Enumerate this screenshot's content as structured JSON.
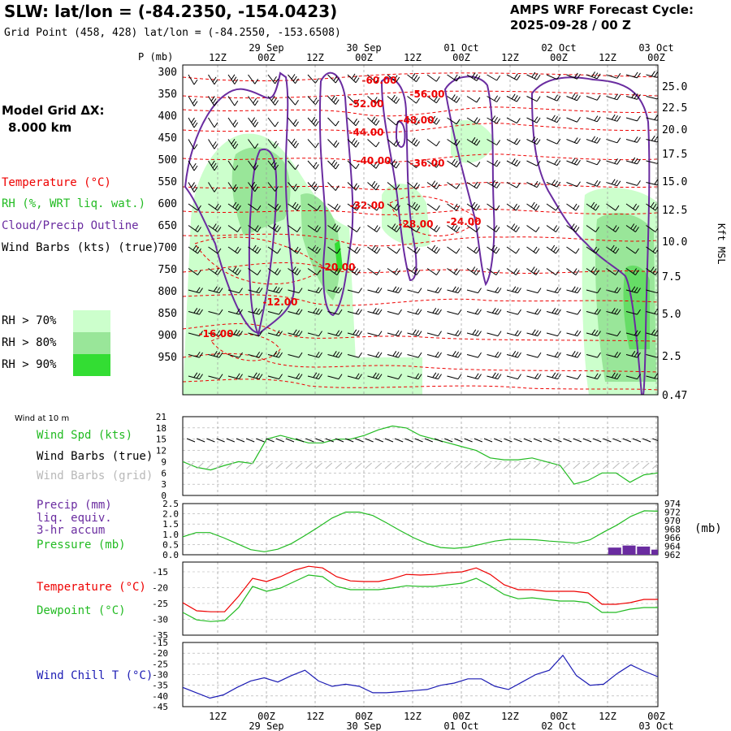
{
  "header": {
    "title": "SLW:  lat/lon = (-84.2350, -154.0423)",
    "gridpoint": "Grid Point (458, 428) lat/lon = (-84.2550, -153.6508)",
    "forecast_title": "AMPS WRF Forecast Cycle:",
    "forecast_cycle": "2025-09-28 / 00  Z"
  },
  "left_legend": {
    "model_grid_label": "Model Grid ΔX:",
    "model_grid_value": "8.000 km",
    "temperature": "Temperature (°C)",
    "rh": "RH (%, WRT liq. wat.)",
    "cloud": "Cloud/Precip Outline",
    "wind_barbs": "Wind Barbs (kts) (true)",
    "rh70": "RH > 70%",
    "rh80": "RH > 80%",
    "rh90": "RH > 90%",
    "rh70_color": "#ccffcc",
    "rh80_color": "#99e699",
    "rh90_color": "#33dd33"
  },
  "axes": {
    "p_label": "P (mb)",
    "kft_label": "Kft MSL",
    "wind10m_label": "Wind at 10 m",
    "mb_label": "(mb)"
  },
  "panel_labels": {
    "wind_spd": "Wind Spd (kts)",
    "wind_barbs_true": "Wind Barbs (true)",
    "wind_barbs_grid": "Wind Barbs (grid)",
    "precip": "Precip (mm)",
    "precip_sub1": "liq. equiv.",
    "precip_sub2": "3-hr accum",
    "pressure": "Pressure (mb)",
    "temperature": "Temperature (°C)",
    "dewpoint": "Dewpoint (°C)",
    "wind_chill": "Wind Chill T (°C)"
  },
  "colors": {
    "red": "#ee0000",
    "green": "#22bb22",
    "purple": "#6a2ca0",
    "blue": "#1c1cb4",
    "gray": "#b8b8b8"
  },
  "chart_data": [
    {
      "type": "line",
      "title": "Vertical cross-section (time-height)",
      "ylabel": "P (mb)",
      "y2label": "Kft MSL",
      "time_ticks": [
        "12Z",
        "00Z",
        "12Z",
        "00Z",
        "12Z",
        "00Z",
        "12Z",
        "00Z",
        "12Z",
        "00Z"
      ],
      "date_ticks": [
        "29 Sep",
        "30 Sep",
        "01 Oct",
        "02 Oct",
        "03 Oct"
      ],
      "pressure_ticks": [
        300,
        350,
        400,
        450,
        500,
        550,
        600,
        650,
        700,
        750,
        800,
        850,
        900,
        950
      ],
      "height_ticks": [
        "25.0",
        "22.5",
        "20.0",
        "17.5",
        "15.0",
        "12.5",
        "10.0",
        "7.5",
        "5.0",
        "2.5",
        "0.47"
      ],
      "temperature_labels": [
        "-60.00",
        "-56.00",
        "-52.00",
        "-48.00",
        "-44.00",
        "-40.00",
        "-36.00",
        "-32.00",
        "-28.00",
        "-24.00",
        "-20.00",
        "-12.00",
        "-16.00"
      ]
    },
    {
      "type": "line",
      "title": "10 m wind speed",
      "ylabel": "Wind Spd (kts)",
      "y_ticks": [
        "21",
        "18",
        "15",
        "12",
        "9",
        "6",
        "3",
        "0"
      ],
      "ylim": [
        0,
        21
      ],
      "series": [
        {
          "name": "Wind Spd",
          "values": [
            9,
            7.5,
            6.8,
            8,
            9,
            8.5,
            15,
            16,
            15,
            14,
            14,
            15,
            15,
            16,
            17.5,
            18.5,
            18,
            16,
            15,
            14,
            13,
            12,
            10,
            9.5,
            9.5,
            10,
            9,
            8,
            3,
            4,
            6,
            6,
            3.5,
            5.5,
            6
          ]
        }
      ]
    },
    {
      "type": "line",
      "title": "Precipitation and surface pressure",
      "ylabel": "Precip (mm)",
      "y2label": "Pressure (mb)",
      "y_ticks": [
        "2.5",
        "2.0",
        "1.5",
        "1.0",
        "0.5",
        "0.0"
      ],
      "y2_ticks": [
        "974",
        "972",
        "970",
        "968",
        "966",
        "964",
        "962"
      ],
      "ylim": [
        0,
        2.5
      ],
      "y2lim": [
        962,
        974
      ],
      "series": [
        {
          "name": "Pressure",
          "values": [
            966.2,
            967.2,
            967.2,
            966,
            964.6,
            963.2,
            962.7,
            963.3,
            964.6,
            966.5,
            968.5,
            970.6,
            972,
            972,
            971.2,
            969.5,
            967.7,
            966,
            964.6,
            963.7,
            963.5,
            963.8,
            964.5,
            965.2,
            965.6,
            965.6,
            965.5,
            965.2,
            965,
            964.7,
            965.5,
            967.3,
            969,
            971,
            972.3,
            972.2
          ]
        },
        {
          "name": "Precip",
          "values": [
            0,
            0,
            0,
            0,
            0,
            0,
            0,
            0,
            0,
            0,
            0,
            0,
            0,
            0,
            0,
            0,
            0,
            0,
            0,
            0,
            0,
            0,
            0,
            0,
            0,
            0,
            0,
            0,
            0,
            0,
            0.35,
            0.45,
            0.4,
            0.25
          ]
        }
      ]
    },
    {
      "type": "line",
      "title": "Temperature and dewpoint",
      "y_ticks": [
        "-15",
        "-20",
        "-25",
        "-30",
        "-35"
      ],
      "ylim": [
        -35,
        -12.5
      ],
      "series": [
        {
          "name": "Temperature",
          "values": [
            -25,
            -27.5,
            -27.8,
            -27.8,
            -23,
            -17.5,
            -18.5,
            -17,
            -15,
            -13.8,
            -14.3,
            -17,
            -18.3,
            -18.5,
            -18.5,
            -17.6,
            -16.3,
            -16.5,
            -16.3,
            -15.8,
            -15.5,
            -14.3,
            -16.3,
            -19.5,
            -21,
            -21,
            -21.5,
            -21.5,
            -21.5,
            -22,
            -25.5,
            -25.5,
            -25,
            -24,
            -24
          ]
        },
        {
          "name": "Dewpoint",
          "values": [
            -28,
            -30.3,
            -30.8,
            -30.5,
            -26.5,
            -20,
            -21.5,
            -20.5,
            -18.5,
            -16.5,
            -17,
            -20,
            -21,
            -21,
            -21,
            -20.5,
            -19.8,
            -20,
            -20,
            -19.5,
            -19,
            -17.5,
            -19.8,
            -22.5,
            -23.8,
            -23.5,
            -24,
            -24.5,
            -24.5,
            -25,
            -28,
            -28,
            -27,
            -26.5,
            -26.5
          ]
        }
      ]
    },
    {
      "type": "line",
      "title": "Wind chill temperature",
      "ylabel": "Wind Chill T (°C)",
      "y_ticks": [
        "-15",
        "-20",
        "-25",
        "-30",
        "-35",
        "-40",
        "-45"
      ],
      "ylim": [
        -45,
        -15
      ],
      "series": [
        {
          "name": "Wind Chill T",
          "values": [
            -36,
            -38.5,
            -41,
            -39.5,
            -36,
            -33,
            -31.5,
            -33.5,
            -30.5,
            -28,
            -33,
            -35.5,
            -34.5,
            -35.5,
            -38.5,
            -38.5,
            -38,
            -37.5,
            -37,
            -35,
            -34,
            -32,
            -32,
            -35.5,
            -37,
            -33.5,
            -30,
            -28,
            -21,
            -30.5,
            -35,
            -34.5,
            -29.5,
            -25.5,
            -28.5,
            -31
          ]
        }
      ]
    }
  ]
}
